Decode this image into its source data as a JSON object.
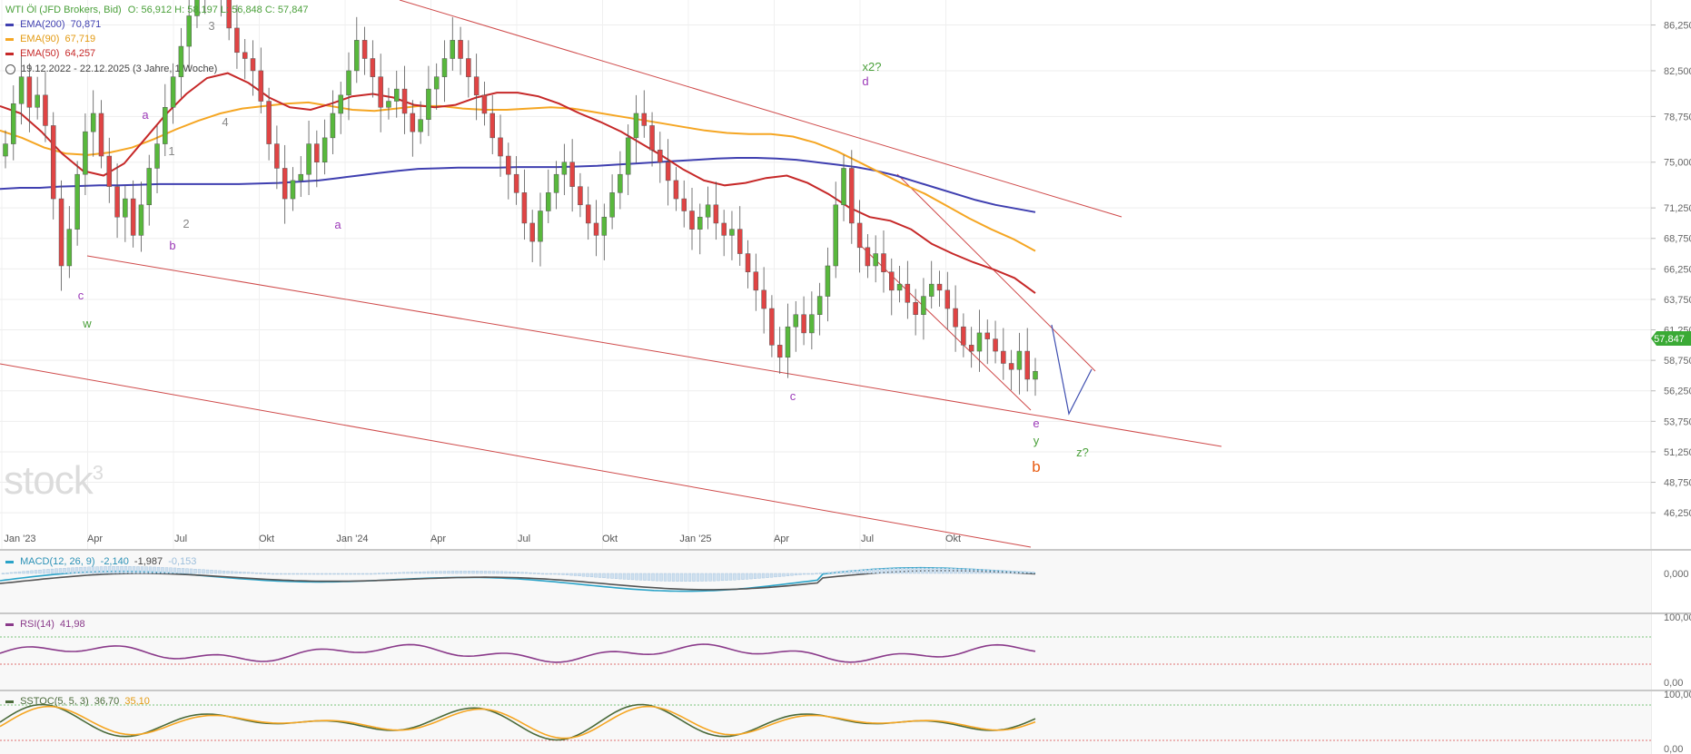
{
  "header": {
    "instrument": "WTI Öl (JFD Brokers, Bid)",
    "ohlc": "O: 56,912  H: 58,197  L: 56,848  C: 57,847",
    "range_text": "19.12.2022 - 22.12.2025  (3 Jahre, 1 Woche)"
  },
  "indicators": [
    {
      "label": "EMA(200)",
      "value": "70,871",
      "color": "#3f3fb0"
    },
    {
      "label": "EMA(90)",
      "value": "67,719",
      "color": "#f5a623"
    },
    {
      "label": "EMA(50)",
      "value": "64,257",
      "color": "#c62828"
    }
  ],
  "watermark": "stock",
  "watermark_sup": "3",
  "panels": {
    "macd": {
      "label": "MACD(12, 26, 9)",
      "v1": "-2,140",
      "v2": "-1,987",
      "v3": "-0,153",
      "axis": [
        "0,000"
      ]
    },
    "rsi": {
      "label": "RSI(14)",
      "value": "41,98",
      "axis": [
        "100,00",
        "0,00"
      ]
    },
    "sstoc": {
      "label": "SSTOC(5, 5, 3)",
      "v1": "36,70",
      "v2": "35,10",
      "axis": [
        "100,00",
        "0,00"
      ]
    }
  },
  "price_badge": "57,847",
  "chart_data": {
    "type": "candlestick",
    "ylim": [
      44.4,
      88.3
    ],
    "y_ticks": [
      "86,250",
      "82,500",
      "78,750",
      "75,000",
      "71,250",
      "68,750",
      "66,250",
      "63,750",
      "61,250",
      "58,750",
      "56,250",
      "53,750",
      "51,250",
      "48,750",
      "46,250"
    ],
    "x_tick_labels": [
      "Jan '23",
      "Apr",
      "Jul",
      "Okt",
      "Jan '24",
      "Apr",
      "Jul",
      "Okt",
      "Jan '25",
      "Apr",
      "Jul",
      "Okt"
    ],
    "closes": [
      76.5,
      79.8,
      82.0,
      79.5,
      80.5,
      78.0,
      72.0,
      66.5,
      69.5,
      74.0,
      77.5,
      79.0,
      75.5,
      73.0,
      70.5,
      72.0,
      69.0,
      71.5,
      74.5,
      76.5,
      79.5,
      82.0,
      84.5,
      87.0,
      88.5,
      91.5,
      90.0,
      89.0,
      86.0,
      84.0,
      83.5,
      82.5,
      80.0,
      76.5,
      74.5,
      72.0,
      73.5,
      74.0,
      76.5,
      75.0,
      77.0,
      79.0,
      80.5,
      82.5,
      85.0,
      83.5,
      82.0,
      79.5,
      80.0,
      81.0,
      79.0,
      77.5,
      78.5,
      81.0,
      82.0,
      83.5,
      85.0,
      83.5,
      82.0,
      80.5,
      79.0,
      77.0,
      75.5,
      74.0,
      72.5,
      70.0,
      68.5,
      71.0,
      72.5,
      74.0,
      75.0,
      73.0,
      71.5,
      70.0,
      69.0,
      70.5,
      72.5,
      74.0,
      77.0,
      79.0,
      78.0,
      76.0,
      75.0,
      73.5,
      72.0,
      71.0,
      69.5,
      70.5,
      71.5,
      70.0,
      69.0,
      69.5,
      67.5,
      66.0,
      64.5,
      63.0,
      60.0,
      59.0,
      61.5,
      62.5,
      61.0,
      62.5,
      64.0,
      66.5,
      71.5,
      74.5,
      70.0,
      68.0,
      66.5,
      67.5,
      66.0,
      64.5,
      65.0,
      63.5,
      62.5,
      64.0,
      65.0,
      64.5,
      63.0,
      61.5,
      60.0,
      59.5,
      61.0,
      60.5,
      59.5,
      58.5,
      58.0,
      59.5,
      57.2,
      57.85
    ],
    "ema200": [
      72.8,
      72.9,
      72.9,
      73.0,
      73.05,
      73.1,
      73.1,
      73.15,
      73.2,
      73.2,
      73.2,
      73.2,
      73.2,
      73.25,
      73.3,
      73.4,
      73.5,
      73.7,
      73.9,
      74.1,
      74.3,
      74.45,
      74.5,
      74.55,
      74.55,
      74.55,
      74.6,
      74.6,
      74.6,
      74.65,
      74.7,
      74.8,
      74.9,
      75.0,
      75.1,
      75.2,
      75.3,
      75.35,
      75.35,
      75.3,
      75.2,
      75.0,
      74.8,
      74.6,
      74.3,
      73.9,
      73.4,
      72.9,
      72.4,
      71.9,
      71.5,
      71.2,
      70.9
    ],
    "ema90": [
      77.6,
      77.0,
      76.2,
      75.7,
      75.6,
      75.8,
      76.2,
      76.9,
      77.7,
      78.4,
      79.0,
      79.4,
      79.6,
      79.8,
      79.9,
      79.6,
      79.3,
      79.2,
      79.4,
      79.6,
      79.6,
      79.4,
      79.3,
      79.3,
      79.4,
      79.5,
      79.4,
      79.1,
      78.8,
      78.5,
      78.2,
      77.9,
      77.6,
      77.4,
      77.3,
      77.3,
      77.1,
      76.6,
      75.9,
      75.0,
      74.1,
      73.2,
      72.4,
      71.4,
      70.4,
      69.5,
      68.7,
      67.72
    ],
    "ema50": [
      79.6,
      79.0,
      77.5,
      75.7,
      74.3,
      73.9,
      74.9,
      76.9,
      78.9,
      80.6,
      81.9,
      82.3,
      81.5,
      80.3,
      79.5,
      79.3,
      79.8,
      80.4,
      80.6,
      80.3,
      79.7,
      79.5,
      79.7,
      80.3,
      80.7,
      80.7,
      80.4,
      79.8,
      79.0,
      78.3,
      77.5,
      76.5,
      75.5,
      74.4,
      73.5,
      73.1,
      73.3,
      73.7,
      73.9,
      73.3,
      72.4,
      71.3,
      70.5,
      70.2,
      69.5,
      68.3,
      67.5,
      66.8,
      66.2,
      65.5,
      64.26
    ],
    "annotations": [
      "a",
      "b",
      "c",
      "w",
      "1",
      "2",
      "3",
      "4",
      "a",
      "x2?",
      "d",
      "c",
      "e",
      "y",
      "b",
      "z?"
    ]
  }
}
